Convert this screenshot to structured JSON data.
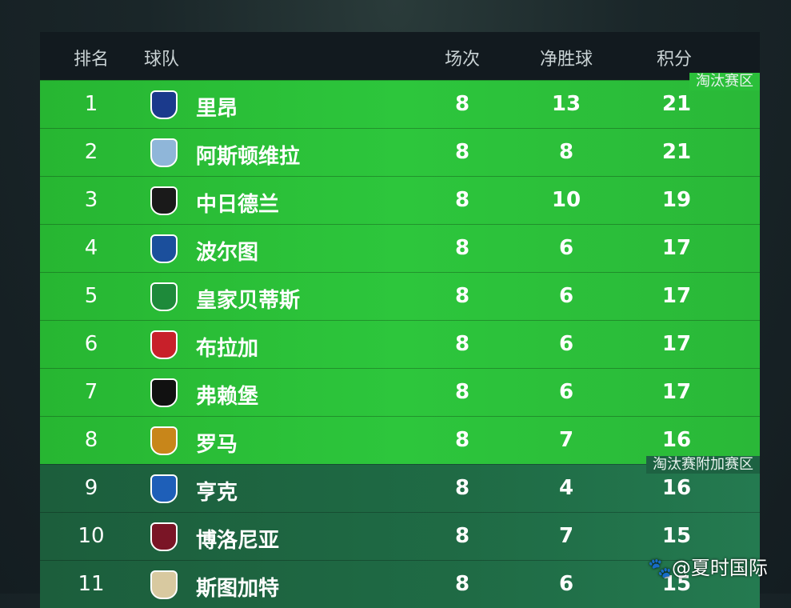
{
  "header": {
    "rank": "排名",
    "team": "球队",
    "played": "场次",
    "goal_diff": "净胜球",
    "points": "积分"
  },
  "zones": {
    "knockout": "淘汰赛区",
    "playoff": "淘汰赛附加赛区"
  },
  "colors": {
    "knockout": "#2dc63c",
    "playoff": "#1f6b45",
    "header": "#121a1f"
  },
  "rows": [
    {
      "rank": "1",
      "team": "里昂",
      "played": "8",
      "gd": "13",
      "pts": "21",
      "logo": "lyon-crest",
      "color": "#1b3a8c"
    },
    {
      "rank": "2",
      "team": "阿斯顿维拉",
      "played": "8",
      "gd": "8",
      "pts": "21",
      "logo": "aston-villa-crest",
      "color": "#8fb6d9"
    },
    {
      "rank": "3",
      "team": "中日德兰",
      "played": "8",
      "gd": "10",
      "pts": "19",
      "logo": "midtjylland-crest",
      "color": "#1a1a1a"
    },
    {
      "rank": "4",
      "team": "波尔图",
      "played": "8",
      "gd": "6",
      "pts": "17",
      "logo": "porto-crest",
      "color": "#1b4f9c"
    },
    {
      "rank": "5",
      "team": "皇家贝蒂斯",
      "played": "8",
      "gd": "6",
      "pts": "17",
      "logo": "betis-crest",
      "color": "#1e8a3a"
    },
    {
      "rank": "6",
      "team": "布拉加",
      "played": "8",
      "gd": "6",
      "pts": "17",
      "logo": "braga-crest",
      "color": "#c8202a"
    },
    {
      "rank": "7",
      "team": "弗赖堡",
      "played": "8",
      "gd": "6",
      "pts": "17",
      "logo": "freiburg-crest",
      "color": "#111111"
    },
    {
      "rank": "8",
      "team": "罗马",
      "played": "8",
      "gd": "7",
      "pts": "16",
      "logo": "roma-crest",
      "color": "#c8861a"
    },
    {
      "rank": "9",
      "team": "亨克",
      "played": "8",
      "gd": "4",
      "pts": "16",
      "logo": "genk-crest",
      "color": "#1e5fb8"
    },
    {
      "rank": "10",
      "team": "博洛尼亚",
      "played": "8",
      "gd": "7",
      "pts": "15",
      "logo": "bologna-crest",
      "color": "#7a1526"
    },
    {
      "rank": "11",
      "team": "斯图加特",
      "played": "8",
      "gd": "6",
      "pts": "15",
      "logo": "stuttgart-crest",
      "color": "#d8c9a0"
    }
  ],
  "watermark": "@夏时国际"
}
